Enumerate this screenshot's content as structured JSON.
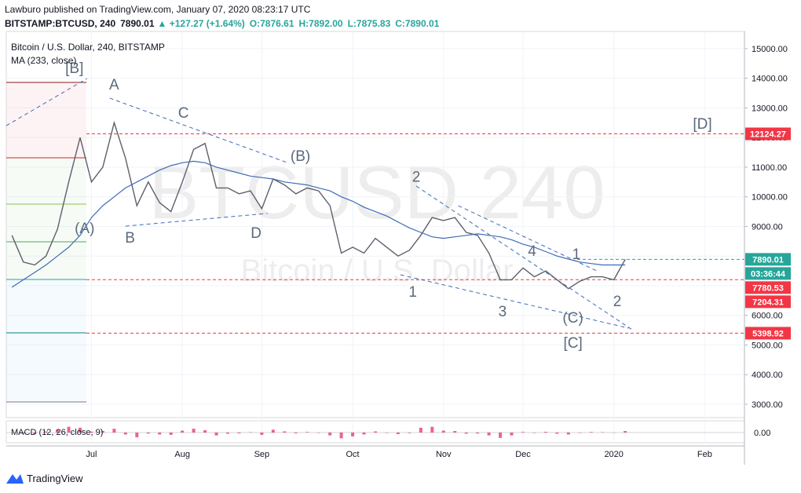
{
  "header": {
    "publisher": "Lawburo published on TradingView.com, January 07, 2020 08:23:17 UTC",
    "symbol": "BITSTAMP:BTCUSD, 240",
    "last": "7890.01",
    "change": "▲ +127.27 (+1.64%)",
    "open": "O:7876.61",
    "high": "H:7892.00",
    "low": "L:7875.83",
    "close": "C:7890.01"
  },
  "footer": "TradingView",
  "chart_data": {
    "type": "line",
    "legend": [
      "Bitcoin / U.S. Dollar, 240, BITSTAMP",
      "MA (233, close)"
    ],
    "watermark": [
      "BTCUSD 240",
      "Bitcoin / U.S. Dollar"
    ],
    "categories": [
      null,
      null,
      null,
      null,
      null,
      null,
      null,
      "Jul",
      null,
      null,
      null,
      null,
      null,
      null,
      null,
      "Aug",
      null,
      null,
      null,
      null,
      null,
      null,
      "Sep",
      null,
      null,
      null,
      null,
      null,
      null,
      null,
      "Oct",
      null,
      null,
      null,
      null,
      null,
      null,
      null,
      "Nov",
      null,
      null,
      null,
      null,
      null,
      null,
      "Dec",
      null,
      null,
      null,
      null,
      null,
      null,
      null,
      "2020",
      null,
      null,
      null,
      null,
      null,
      null,
      null,
      "Feb",
      null,
      null,
      null
    ],
    "series": [
      {
        "color": "#5d606b",
        "values": [
          8700,
          7800,
          7700,
          8000,
          8900,
          10500,
          12000,
          10500,
          11000,
          12500,
          11300,
          9700,
          10500,
          9800,
          9500,
          10500,
          11600,
          11800,
          10300,
          10300,
          10100,
          10200,
          9600,
          10600,
          10400,
          10100,
          10300,
          10200,
          9700,
          8100,
          8300,
          8100,
          8600,
          8300,
          8000,
          8200,
          8700,
          9300,
          9200,
          9300,
          8800,
          8700,
          8100,
          7200,
          7200,
          7600,
          7300,
          7500,
          7200,
          6900,
          7150,
          7300,
          7300,
          7200,
          7890.01,
          null,
          null,
          null,
          null,
          null,
          null,
          null,
          null,
          null,
          null
        ]
      },
      {
        "color": "#3f6bb5",
        "values": [
          6950,
          7200,
          7450,
          7700,
          8000,
          8300,
          8700,
          9300,
          9700,
          10000,
          10300,
          10500,
          10700,
          10900,
          11050,
          11150,
          11200,
          11150,
          11000,
          10900,
          10800,
          10700,
          10650,
          10600,
          10500,
          10450,
          10400,
          10300,
          10200,
          10000,
          9850,
          9650,
          9500,
          9350,
          9150,
          8950,
          8800,
          8650,
          8600,
          8650,
          8700,
          8750,
          8700,
          8650,
          8550,
          8400,
          8300,
          8150,
          8000,
          7900,
          7800,
          7750,
          7700,
          7700,
          7700,
          null,
          null,
          null,
          null,
          null,
          null,
          null,
          null,
          null,
          null
        ]
      }
    ],
    "ylim": [
      2550,
      15580
    ],
    "yticks": [
      {
        "value": 3000,
        "label": "3000.00"
      },
      {
        "value": 4000,
        "label": "4000.00"
      },
      {
        "value": 5000,
        "label": "5000.00"
      },
      {
        "value": 6000,
        "label": "6000.00"
      },
      {
        "value": 7000,
        "label": "7000.00"
      },
      {
        "value": 8000,
        "label": "8000.00"
      },
      {
        "value": 9000,
        "label": "9000.00"
      },
      {
        "value": 10000,
        "label": "10000.00"
      },
      {
        "value": 11000,
        "label": "11000.00"
      },
      {
        "value": 12000,
        "label": "12000.00"
      },
      {
        "value": 13000,
        "label": "13000.00"
      },
      {
        "value": 14000,
        "label": "14000.00"
      },
      {
        "value": 15000,
        "label": "15000.00"
      }
    ],
    "grid": true,
    "price_labels": [
      {
        "value": 12124.27,
        "color": "#f23645",
        "line": true
      },
      {
        "value": 7890.01,
        "color": "#26a69a",
        "line": true
      },
      {
        "value": 7780.53,
        "color": "#f23645",
        "line": false
      },
      {
        "value": 7204.31,
        "color": "#f23645",
        "line": true
      },
      {
        "value": 5398.92,
        "color": "#f23645",
        "line": true
      }
    ],
    "countdown": "03:36:44",
    "trendline_color": "#3f6bb5",
    "trendlines": [
      {
        "from": [
          -0.5,
          12400
        ],
        "to": [
          6.6,
          13990
        ]
      },
      {
        "from": [
          8.6,
          13330
        ],
        "to": [
          24.2,
          11160
        ]
      },
      {
        "from": [
          10.0,
          9010
        ],
        "to": [
          22.5,
          9440
        ]
      },
      {
        "from": [
          35.6,
          10360
        ],
        "to": [
          54.6,
          5520
        ]
      },
      {
        "from": [
          34.2,
          7370
        ],
        "to": [
          54.3,
          5570
        ]
      },
      {
        "from": [
          39.3,
          9700
        ],
        "to": [
          51.5,
          7500
        ]
      }
    ],
    "annotations": [
      {
        "text": "[B]",
        "x": 5.5,
        "y": 14360
      },
      {
        "text": "(A)",
        "x": 6.4,
        "y": 8960
      },
      {
        "text": "A",
        "x": 9.0,
        "y": 13810
      },
      {
        "text": "B",
        "x": 10.4,
        "y": 8640
      },
      {
        "text": "C",
        "x": 15.1,
        "y": 12850
      },
      {
        "text": "D",
        "x": 21.5,
        "y": 8800
      },
      {
        "text": "(B)",
        "x": 25.4,
        "y": 11400
      },
      {
        "text": "2",
        "x": 35.6,
        "y": 10700
      },
      {
        "text": "1",
        "x": 35.3,
        "y": 6810
      },
      {
        "text": "3",
        "x": 43.2,
        "y": 6150
      },
      {
        "text": "4",
        "x": 45.8,
        "y": 8190
      },
      {
        "text": "(C)",
        "x": 49.4,
        "y": 5940
      },
      {
        "text": "[C]",
        "x": 49.4,
        "y": 5090
      },
      {
        "text": "1",
        "x": 49.7,
        "y": 8090
      },
      {
        "text": "2",
        "x": 53.3,
        "y": 6500
      },
      {
        "text": "[D]",
        "x": 60.8,
        "y": 12480
      }
    ],
    "macd": {
      "label": "MACD (12, 26, close, 9)",
      "color": "#e91e63",
      "values": [
        0,
        -50,
        -80,
        60,
        150,
        300,
        250,
        50,
        80,
        200,
        -100,
        -250,
        -50,
        -100,
        -120,
        100,
        200,
        120,
        -150,
        -60,
        -40,
        20,
        -120,
        150,
        60,
        -40,
        30,
        -20,
        -150,
        -300,
        -200,
        -100,
        60,
        -20,
        -80,
        -30,
        250,
        300,
        100,
        80,
        -60,
        -50,
        -150,
        -280,
        -150,
        30,
        -20,
        40,
        -60,
        -100,
        -20,
        30,
        20,
        -10,
        80,
        null,
        null,
        null,
        null,
        null,
        null,
        null,
        null,
        null,
        null
      ],
      "ylim": [
        -450,
        450
      ],
      "yticks": [
        {
          "value": 0,
          "label": "0.00"
        }
      ]
    }
  }
}
